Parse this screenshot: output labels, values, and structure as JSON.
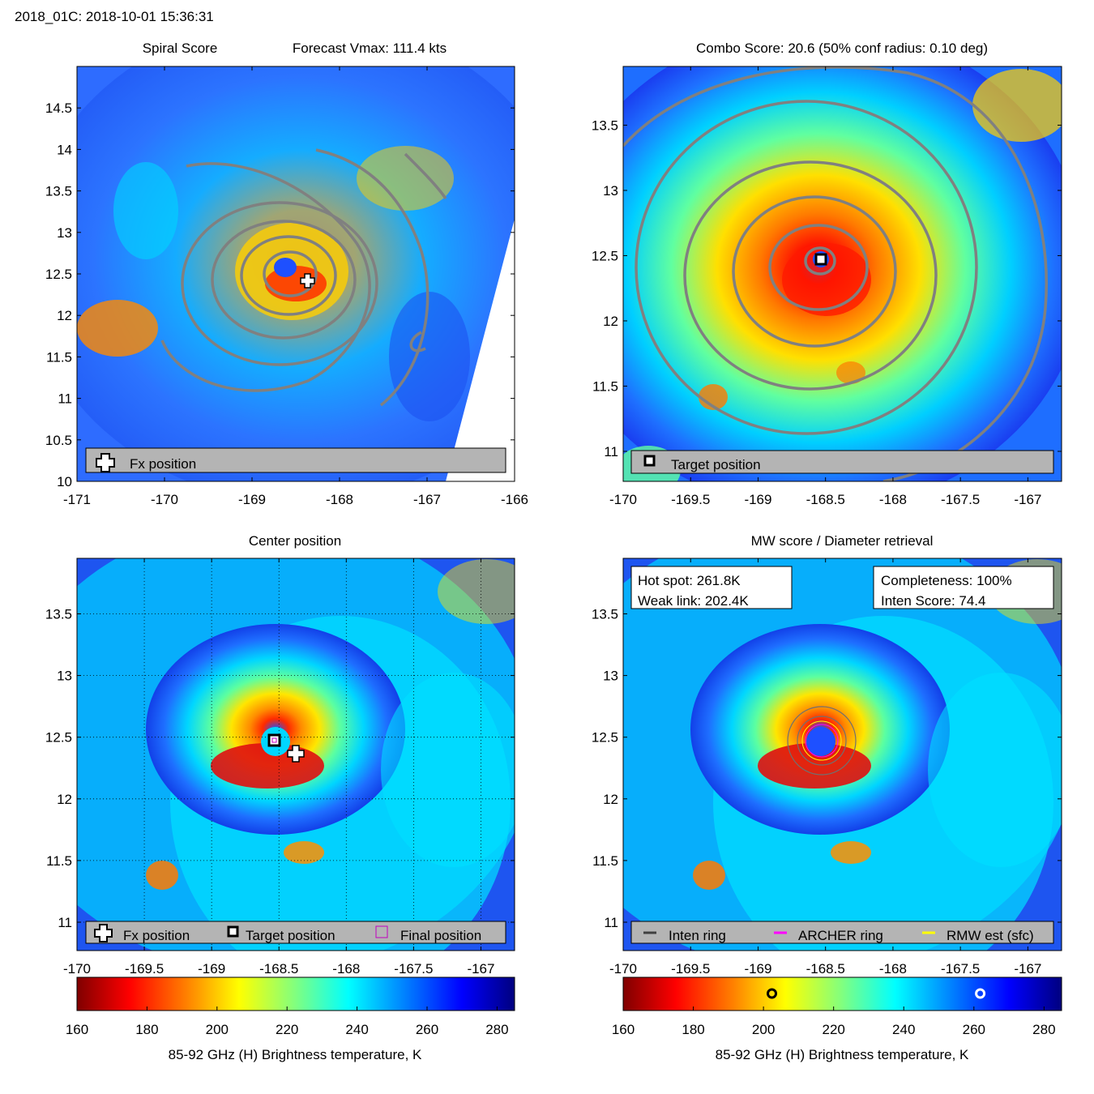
{
  "figure": {
    "title": "2018_01C: 2018-10-01 15:36:31"
  },
  "colormap": {
    "stops": [
      "#7f0000",
      "#ff0000",
      "#ff8000",
      "#ffff00",
      "#80ff80",
      "#00ffff",
      "#0080ff",
      "#0000ff",
      "#00007f"
    ],
    "vmin": 160,
    "vmax": 285
  },
  "legend_colors": {
    "contour": "#808080",
    "inten_ring": "#404040",
    "archer_ring": "#ff00ff",
    "rmw_ring": "#ffff00",
    "legend_box": "#b4b4b4"
  },
  "chart_data": [
    {
      "type": "heatmap",
      "title": "Spiral Score",
      "subtitle": "Forecast Vmax: 111.4 kts",
      "xlim": [
        -171,
        -166
      ],
      "ylim": [
        10,
        15
      ],
      "xticks": [
        "-171",
        "-170",
        "-169",
        "-168",
        "-167",
        "-166"
      ],
      "yticks": [
        "10",
        "10.5",
        "11",
        "11.5",
        "12",
        "12.5",
        "13",
        "13.5",
        "14",
        "14.5"
      ],
      "grid": false,
      "legend": {
        "position": "bottom",
        "items": [
          "Fx position"
        ]
      },
      "markers": [
        {
          "label": "Fx position",
          "x": -168.35,
          "y": 12.37
        }
      ]
    },
    {
      "type": "heatmap",
      "title": "Combo Score: 20.6  (50% conf radius: 0.10 deg)",
      "xlim": [
        -170,
        -166.75
      ],
      "ylim": [
        10.77,
        13.95
      ],
      "xticks": [
        "-170",
        "-169.5",
        "-169",
        "-168.5",
        "-168",
        "-167.5",
        "-167"
      ],
      "yticks": [
        "11",
        "11.5",
        "12",
        "12.5",
        "13",
        "13.5"
      ],
      "grid": false,
      "legend": {
        "position": "bottom",
        "items": [
          "Target position"
        ]
      },
      "markers": [
        {
          "label": "Target position",
          "x": -168.5,
          "y": 12.45
        }
      ]
    },
    {
      "type": "heatmap",
      "title": "Center position",
      "xlim": [
        -170,
        -166.75
      ],
      "ylim": [
        10.77,
        13.95
      ],
      "xticks": [
        "-170",
        "-169.5",
        "-169",
        "-168.5",
        "-168",
        "-167.5",
        "-167"
      ],
      "yticks": [
        "11",
        "11.5",
        "12",
        "12.5",
        "13",
        "13.5"
      ],
      "grid": true,
      "legend": {
        "position": "bottom",
        "items": [
          "Fx position",
          "Target position",
          "Final position"
        ]
      },
      "markers": [
        {
          "label": "Target position",
          "x": -168.5,
          "y": 12.45
        },
        {
          "label": "Fx position",
          "x": -168.35,
          "y": 12.35
        }
      ],
      "colorbar": {
        "ticks": [
          "160",
          "180",
          "200",
          "220",
          "240",
          "260",
          "280"
        ],
        "label": "85-92 GHz (H) Brightness temperature, K"
      }
    },
    {
      "type": "heatmap",
      "title": "MW score / Diameter retrieval",
      "xlim": [
        -170,
        -166.75
      ],
      "ylim": [
        10.77,
        13.95
      ],
      "xticks": [
        "-170",
        "-169.5",
        "-169",
        "-168.5",
        "-168",
        "-167.5",
        "-167"
      ],
      "yticks": [
        "11",
        "11.5",
        "12",
        "12.5",
        "13",
        "13.5"
      ],
      "grid": false,
      "legend": {
        "position": "bottom",
        "items": [
          "Inten ring",
          "ARCHER ring",
          "RMW est (sfc)"
        ]
      },
      "info_left": [
        "Hot spot: 261.8K",
        "Weak link: 202.4K"
      ],
      "info_right": [
        "Completeness: 100%",
        "Inten Score: 74.4"
      ],
      "colorbar": {
        "ticks": [
          "160",
          "180",
          "200",
          "220",
          "240",
          "260",
          "280"
        ],
        "label": "85-92 GHz (H) Brightness temperature, K",
        "markers": [
          {
            "label": "Weak link",
            "value": 202.4
          },
          {
            "label": "Hot spot",
            "value": 261.8
          }
        ]
      }
    }
  ]
}
